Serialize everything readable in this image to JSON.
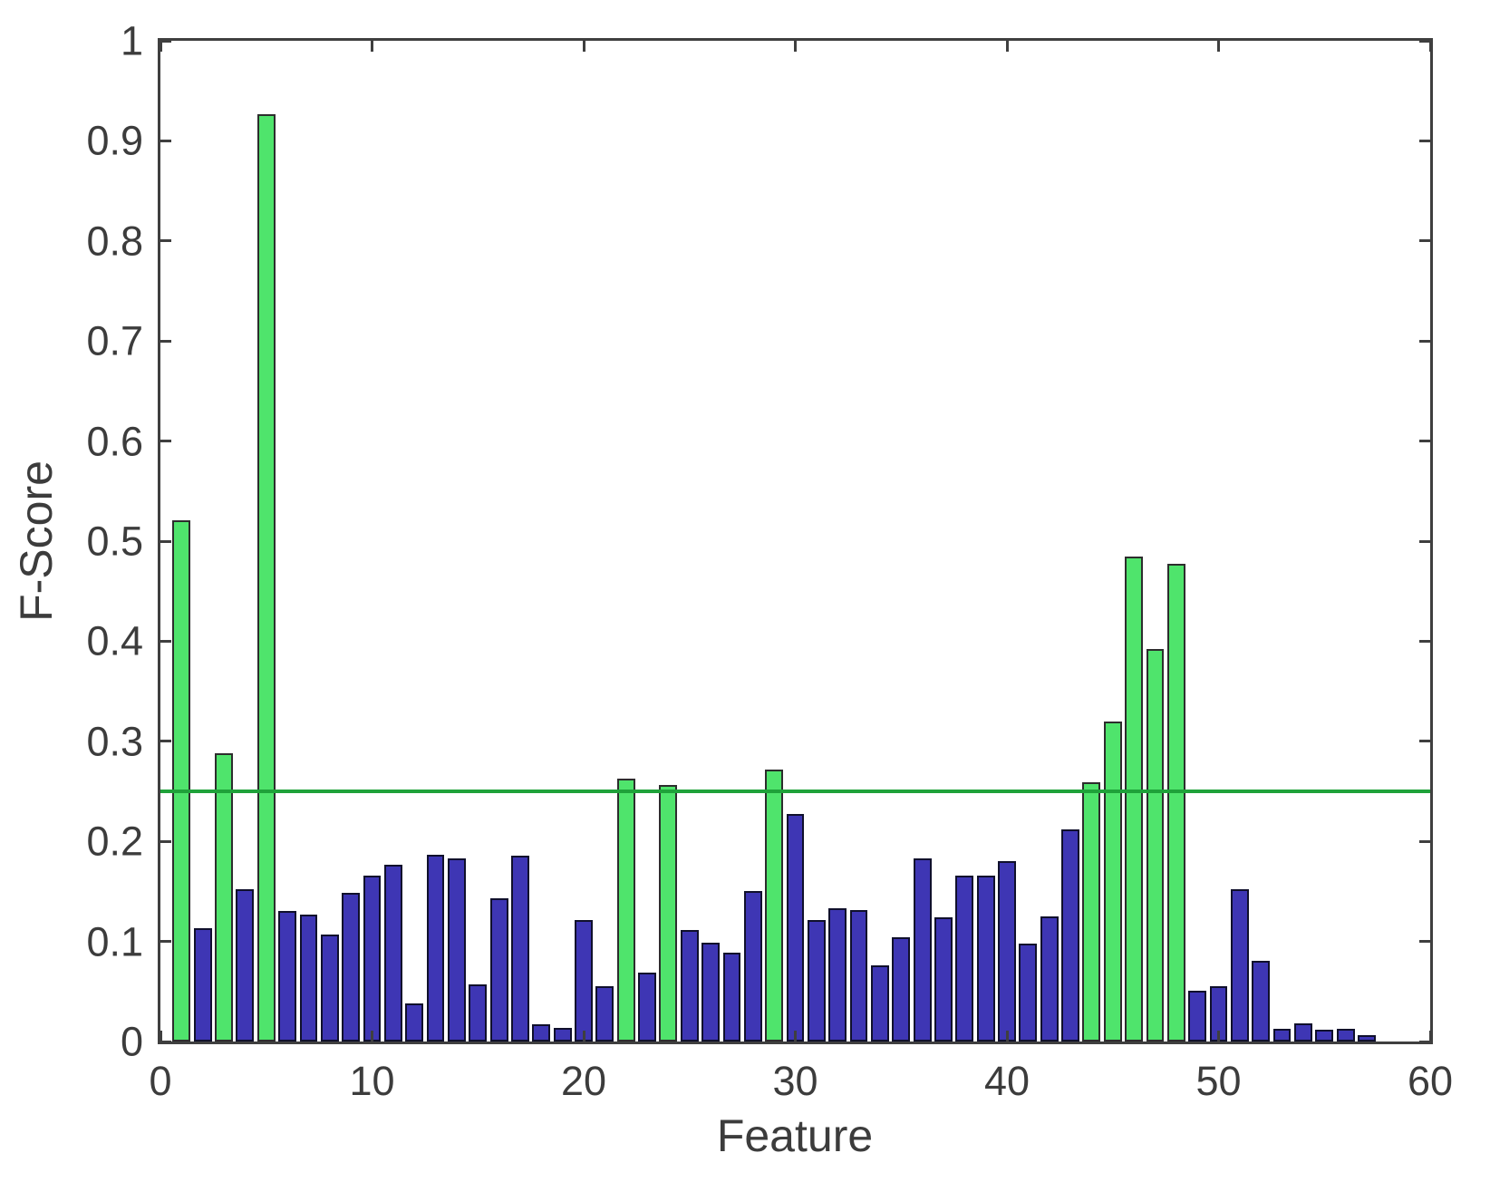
{
  "chart_data": {
    "type": "bar",
    "title": "",
    "xlabel": "Feature",
    "ylabel": "F-Score",
    "xlim": [
      0,
      60
    ],
    "ylim": [
      0,
      1
    ],
    "grid": false,
    "legend": null,
    "x_ticks": [
      {
        "value": 0,
        "label": "0"
      },
      {
        "value": 10,
        "label": "10"
      },
      {
        "value": 20,
        "label": "20"
      },
      {
        "value": 30,
        "label": "30"
      },
      {
        "value": 40,
        "label": "40"
      },
      {
        "value": 50,
        "label": "50"
      },
      {
        "value": 60,
        "label": "60"
      }
    ],
    "y_ticks": [
      {
        "value": 0.0,
        "label": "0"
      },
      {
        "value": 0.1,
        "label": "0.1"
      },
      {
        "value": 0.2,
        "label": "0.2"
      },
      {
        "value": 0.3,
        "label": "0.3"
      },
      {
        "value": 0.4,
        "label": "0.4"
      },
      {
        "value": 0.5,
        "label": "0.5"
      },
      {
        "value": 0.6,
        "label": "0.6"
      },
      {
        "value": 0.7,
        "label": "0.7"
      },
      {
        "value": 0.8,
        "label": "0.8"
      },
      {
        "value": 0.9,
        "label": "0.9"
      },
      {
        "value": 1.0,
        "label": "1"
      }
    ],
    "threshold_line": {
      "y": 0.25,
      "color": "#1fa23a"
    },
    "colors": {
      "selected_bar": "#4fe46c",
      "unselected_bar": "#3e36b4",
      "bar_edge_unselected": "#10102c",
      "bar_edge_selected": "#2d2d2d",
      "axis": "#3f3f3f",
      "text": "#3c3c3c"
    },
    "bar_width_units": 0.85,
    "features": [
      1,
      2,
      3,
      4,
      5,
      6,
      7,
      8,
      9,
      10,
      11,
      12,
      13,
      14,
      15,
      16,
      17,
      18,
      19,
      20,
      21,
      22,
      23,
      24,
      25,
      26,
      27,
      28,
      29,
      30,
      31,
      32,
      33,
      34,
      35,
      36,
      37,
      38,
      39,
      40,
      41,
      42,
      43,
      44,
      45,
      46,
      47,
      48,
      49,
      50,
      51,
      52,
      53,
      54,
      55,
      56,
      57
    ],
    "values": [
      0.521,
      0.113,
      0.288,
      0.152,
      0.927,
      0.13,
      0.127,
      0.107,
      0.149,
      0.166,
      0.177,
      0.038,
      0.187,
      0.183,
      0.057,
      0.143,
      0.186,
      0.017,
      0.014,
      0.121,
      0.055,
      0.263,
      0.069,
      0.256,
      0.111,
      0.099,
      0.089,
      0.15,
      0.272,
      0.227,
      0.121,
      0.133,
      0.131,
      0.076,
      0.104,
      0.183,
      0.124,
      0.166,
      0.166,
      0.18,
      0.098,
      0.125,
      0.212,
      0.259,
      0.32,
      0.485,
      0.392,
      0.477,
      0.051,
      0.055,
      0.152,
      0.081,
      0.013,
      0.018,
      0.012,
      0.013,
      0.006
    ],
    "selected_features": [
      1,
      3,
      5,
      22,
      24,
      29,
      44,
      45,
      46,
      47,
      48
    ]
  }
}
